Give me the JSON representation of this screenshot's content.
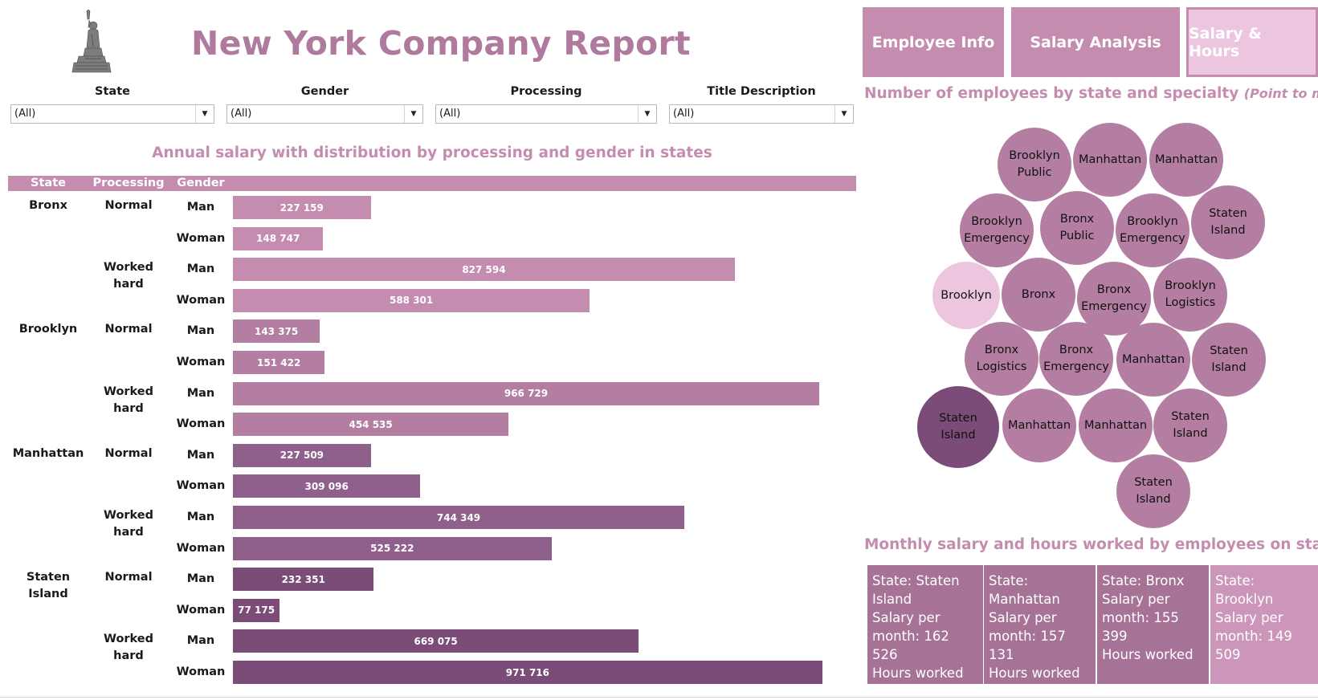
{
  "header": {
    "title": "New York Company Report",
    "nav": [
      {
        "label": "Employee Info",
        "active": false
      },
      {
        "label": "Salary Analysis",
        "active": false
      },
      {
        "label": "Salary & Hours",
        "active": true
      }
    ]
  },
  "filters": [
    {
      "label": "State",
      "value": "(All)"
    },
    {
      "label": "Gender",
      "value": "(All)"
    },
    {
      "label": "Processing",
      "value": "(All)"
    },
    {
      "label": "Title Description",
      "value": "(All)"
    }
  ],
  "salary_chart": {
    "title": "Annual salary with distribution by processing and gender in states",
    "headers": {
      "state": "State",
      "processing": "Processing",
      "gender": "Gender"
    }
  },
  "chart_data": {
    "type": "bar",
    "orientation": "horizontal",
    "title": "Annual salary with distribution by processing and gender in states",
    "rows": [
      {
        "state": "Bronx",
        "processing": "Normal",
        "gender": "Man",
        "value": 227159,
        "label": "227 159",
        "color": "#c48caf"
      },
      {
        "state": "Bronx",
        "processing": "Normal",
        "gender": "Woman",
        "value": 148747,
        "label": "148 747",
        "color": "#c48caf"
      },
      {
        "state": "Bronx",
        "processing": "Worked hard",
        "gender": "Man",
        "value": 827594,
        "label": "827 594",
        "color": "#c48caf"
      },
      {
        "state": "Bronx",
        "processing": "Worked hard",
        "gender": "Woman",
        "value": 588301,
        "label": "588 301",
        "color": "#c48caf"
      },
      {
        "state": "Brooklyn",
        "processing": "Normal",
        "gender": "Man",
        "value": 143375,
        "label": "143 375",
        "color": "#b47ea3"
      },
      {
        "state": "Brooklyn",
        "processing": "Normal",
        "gender": "Woman",
        "value": 151422,
        "label": "151 422",
        "color": "#b47ea3"
      },
      {
        "state": "Brooklyn",
        "processing": "Worked hard",
        "gender": "Man",
        "value": 966729,
        "label": "966 729",
        "color": "#b47ea3"
      },
      {
        "state": "Brooklyn",
        "processing": "Worked hard",
        "gender": "Woman",
        "value": 454535,
        "label": "454 535",
        "color": "#b47ea3"
      },
      {
        "state": "Manhattan",
        "processing": "Normal",
        "gender": "Man",
        "value": 227509,
        "label": "227 509",
        "color": "#8e608b"
      },
      {
        "state": "Manhattan",
        "processing": "Normal",
        "gender": "Woman",
        "value": 309096,
        "label": "309 096",
        "color": "#8e608b"
      },
      {
        "state": "Manhattan",
        "processing": "Worked hard",
        "gender": "Man",
        "value": 744349,
        "label": "744 349",
        "color": "#8e608b"
      },
      {
        "state": "Manhattan",
        "processing": "Worked hard",
        "gender": "Woman",
        "value": 525222,
        "label": "525 222",
        "color": "#8e608b"
      },
      {
        "state": "Staten Island",
        "processing": "Normal",
        "gender": "Man",
        "value": 232351,
        "label": "232 351",
        "color": "#7a4c77"
      },
      {
        "state": "Staten Island",
        "processing": "Normal",
        "gender": "Woman",
        "value": 77175,
        "label": "77 175",
        "color": "#7a4c77"
      },
      {
        "state": "Staten Island",
        "processing": "Worked hard",
        "gender": "Man",
        "value": 669075,
        "label": "669 075",
        "color": "#7a4c77"
      },
      {
        "state": "Staten Island",
        "processing": "Worked hard",
        "gender": "Woman",
        "value": 971716,
        "label": "971 716",
        "color": "#7a4c77"
      }
    ],
    "grid": false,
    "legend": "none"
  },
  "bubble_chart": {
    "title": "Number of employees by state and specialty",
    "hint": "(Point to me)",
    "bubbles": [
      {
        "label": "Brooklyn Public",
        "color": "#b47ea3"
      },
      {
        "label": "Manhattan",
        "color": "#b47ea3"
      },
      {
        "label": "Manhattan",
        "color": "#b47ea3"
      },
      {
        "label": "Brooklyn Emergency",
        "color": "#b47ea3"
      },
      {
        "label": "Bronx Public",
        "color": "#b47ea3"
      },
      {
        "label": "Brooklyn Emergency",
        "color": "#b47ea3"
      },
      {
        "label": "Staten Island",
        "color": "#b47ea3"
      },
      {
        "label": "Brooklyn",
        "color": "#ecc6de"
      },
      {
        "label": "Bronx",
        "color": "#b47ea3"
      },
      {
        "label": "Bronx Emergency",
        "color": "#b47ea3"
      },
      {
        "label": "Brooklyn Logistics",
        "color": "#b47ea3"
      },
      {
        "label": "Bronx Logistics",
        "color": "#b47ea3"
      },
      {
        "label": "Bronx Emergency",
        "color": "#b47ea3"
      },
      {
        "label": "Manhattan",
        "color": "#b47ea3"
      },
      {
        "label": "Staten Island",
        "color": "#b47ea3"
      },
      {
        "label": "Staten Island",
        "color": "#7a4c77"
      },
      {
        "label": "Manhattan",
        "color": "#b47ea3"
      },
      {
        "label": "Manhattan",
        "color": "#b47ea3"
      },
      {
        "label": "Staten Island",
        "color": "#b47ea3"
      },
      {
        "label": "Staten Island",
        "color": "#b47ea3"
      }
    ]
  },
  "monthly": {
    "title": "Monthly salary and hours worked by employees on staff",
    "cards": [
      {
        "state_line": "State: Staten Island",
        "salary_line": "Salary per month: 162 526",
        "hours_line": "Hours worked",
        "color": "#a67397"
      },
      {
        "state_line": "State: Manhattan",
        "salary_line": "Salary per month: 157 131",
        "hours_line": "Hours worked",
        "color": "#a67397"
      },
      {
        "state_line": "State: Bronx",
        "salary_line": "Salary per month: 155 399",
        "hours_line": "Hours worked",
        "color": "#a67397"
      },
      {
        "state_line": "State: Brooklyn",
        "salary_line": "Salary per month: 149 509",
        "hours_line": "",
        "color": "#cc96ba"
      }
    ]
  }
}
